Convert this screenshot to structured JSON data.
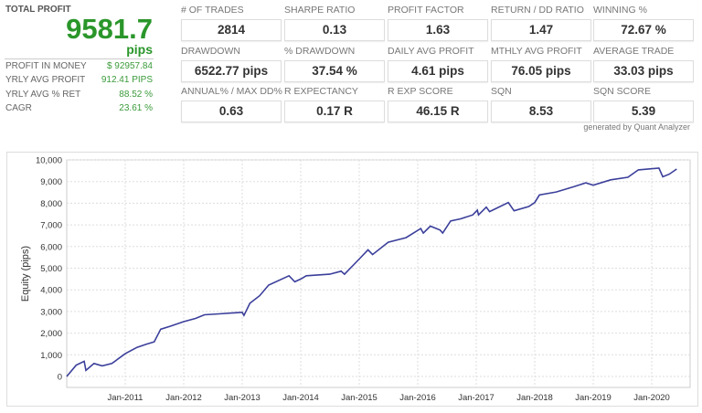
{
  "summary": {
    "total_profit_label": "TOTAL PROFIT",
    "total_profit_value": "9581.7",
    "total_profit_unit": "pips",
    "rows": [
      {
        "label": "PROFIT IN MONEY",
        "value": "$ 92957.84"
      },
      {
        "label": "YRLY AVG PROFIT",
        "value": "912.41 PIPS"
      },
      {
        "label": "YRLY AVG % RET",
        "value": "88.52 %"
      },
      {
        "label": "CAGR",
        "value": "23.61 %"
      }
    ]
  },
  "metrics": [
    [
      {
        "label": "# OF TRADES",
        "value": "2814"
      },
      {
        "label": "SHARPE RATIO",
        "value": "0.13"
      },
      {
        "label": "PROFIT FACTOR",
        "value": "1.63"
      },
      {
        "label": "RETURN / DD RATIO",
        "value": "1.47"
      },
      {
        "label": "WINNING %",
        "value": "72.67 %"
      }
    ],
    [
      {
        "label": "DRAWDOWN",
        "value": "6522.77 pips"
      },
      {
        "label": "% DRAWDOWN",
        "value": "37.54 %"
      },
      {
        "label": "DAILY AVG PROFIT",
        "value": "4.61 pips"
      },
      {
        "label": "MTHLY AVG PROFIT",
        "value": "76.05 pips"
      },
      {
        "label": "AVERAGE TRADE",
        "value": "33.03 pips"
      }
    ],
    [
      {
        "label": "ANNUAL% / MAX DD%",
        "value": "0.63"
      },
      {
        "label": "R EXPECTANCY",
        "value": "0.17 R"
      },
      {
        "label": "R EXP SCORE",
        "value": "46.15 R"
      },
      {
        "label": "SQN",
        "value": "8.53"
      },
      {
        "label": "SQN SCORE",
        "value": "5.39"
      }
    ]
  ],
  "generated_by": "generated by Quant Analyzer",
  "colors": {
    "green": "#2a962a",
    "line": "#3b3f9a"
  },
  "chart_data": {
    "type": "line",
    "ylabel": "Equity (pips)",
    "xlabel": "",
    "ylim": [
      -500,
      10000
    ],
    "xlim": [
      "2010-01-01",
      "2020-06-10"
    ],
    "yticks": [
      "0",
      "1,000",
      "2,000",
      "3,000",
      "4,000",
      "5,000",
      "6,000",
      "7,000",
      "8,000",
      "9,000",
      "10,000"
    ],
    "xticks": [
      "Jan-2011",
      "Jan-2012",
      "Jan-2013",
      "Jan-2014",
      "Jan-2015",
      "Jan-2016",
      "Jan-2017",
      "Jan-2018",
      "Jan-2019",
      "Jan-2020"
    ],
    "grid": true,
    "series": [
      {
        "points": [
          [
            "2010-01-01",
            0
          ],
          [
            "2010-03-01",
            520
          ],
          [
            "2010-04-20",
            700
          ],
          [
            "2010-05-01",
            280
          ],
          [
            "2010-06-20",
            600
          ],
          [
            "2010-08-10",
            490
          ],
          [
            "2010-10-10",
            600
          ],
          [
            "2011-01-01",
            1050
          ],
          [
            "2011-03-15",
            1340
          ],
          [
            "2011-05-10",
            1480
          ],
          [
            "2011-07-01",
            1600
          ],
          [
            "2011-08-10",
            2180
          ],
          [
            "2011-10-10",
            2320
          ],
          [
            "2012-01-01",
            2530
          ],
          [
            "2012-03-15",
            2680
          ],
          [
            "2012-05-10",
            2850
          ],
          [
            "2012-08-10",
            2890
          ],
          [
            "2013-01-01",
            2960
          ],
          [
            "2013-01-12",
            2820
          ],
          [
            "2013-02-18",
            3380
          ],
          [
            "2013-04-20",
            3730
          ],
          [
            "2013-06-15",
            4220
          ],
          [
            "2013-10-20",
            4650
          ],
          [
            "2013-11-25",
            4370
          ],
          [
            "2014-01-01",
            4500
          ],
          [
            "2014-02-05",
            4650
          ],
          [
            "2014-07-01",
            4720
          ],
          [
            "2014-09-10",
            4860
          ],
          [
            "2014-10-01",
            4720
          ],
          [
            "2015-01-01",
            5420
          ],
          [
            "2015-02-25",
            5850
          ],
          [
            "2015-03-25",
            5630
          ],
          [
            "2015-07-01",
            6200
          ],
          [
            "2015-10-20",
            6410
          ],
          [
            "2016-01-20",
            6830
          ],
          [
            "2016-02-05",
            6620
          ],
          [
            "2016-03-20",
            6940
          ],
          [
            "2016-05-20",
            6760
          ],
          [
            "2016-06-05",
            6620
          ],
          [
            "2016-07-25",
            7180
          ],
          [
            "2016-09-25",
            7280
          ],
          [
            "2016-12-10",
            7460
          ],
          [
            "2017-01-08",
            7680
          ],
          [
            "2017-01-15",
            7460
          ],
          [
            "2017-03-05",
            7820
          ],
          [
            "2017-03-25",
            7610
          ],
          [
            "2017-07-20",
            8030
          ],
          [
            "2017-08-25",
            7650
          ],
          [
            "2017-11-25",
            7850
          ],
          [
            "2018-01-01",
            8030
          ],
          [
            "2018-01-30",
            8380
          ],
          [
            "2018-05-15",
            8520
          ],
          [
            "2018-09-01",
            8760
          ],
          [
            "2018-11-15",
            8940
          ],
          [
            "2019-01-01",
            8830
          ],
          [
            "2019-04-20",
            9080
          ],
          [
            "2019-08-05",
            9200
          ],
          [
            "2019-10-10",
            9540
          ],
          [
            "2020-02-15",
            9620
          ],
          [
            "2020-03-10",
            9220
          ],
          [
            "2020-04-20",
            9340
          ],
          [
            "2020-06-05",
            9580
          ]
        ]
      }
    ]
  }
}
